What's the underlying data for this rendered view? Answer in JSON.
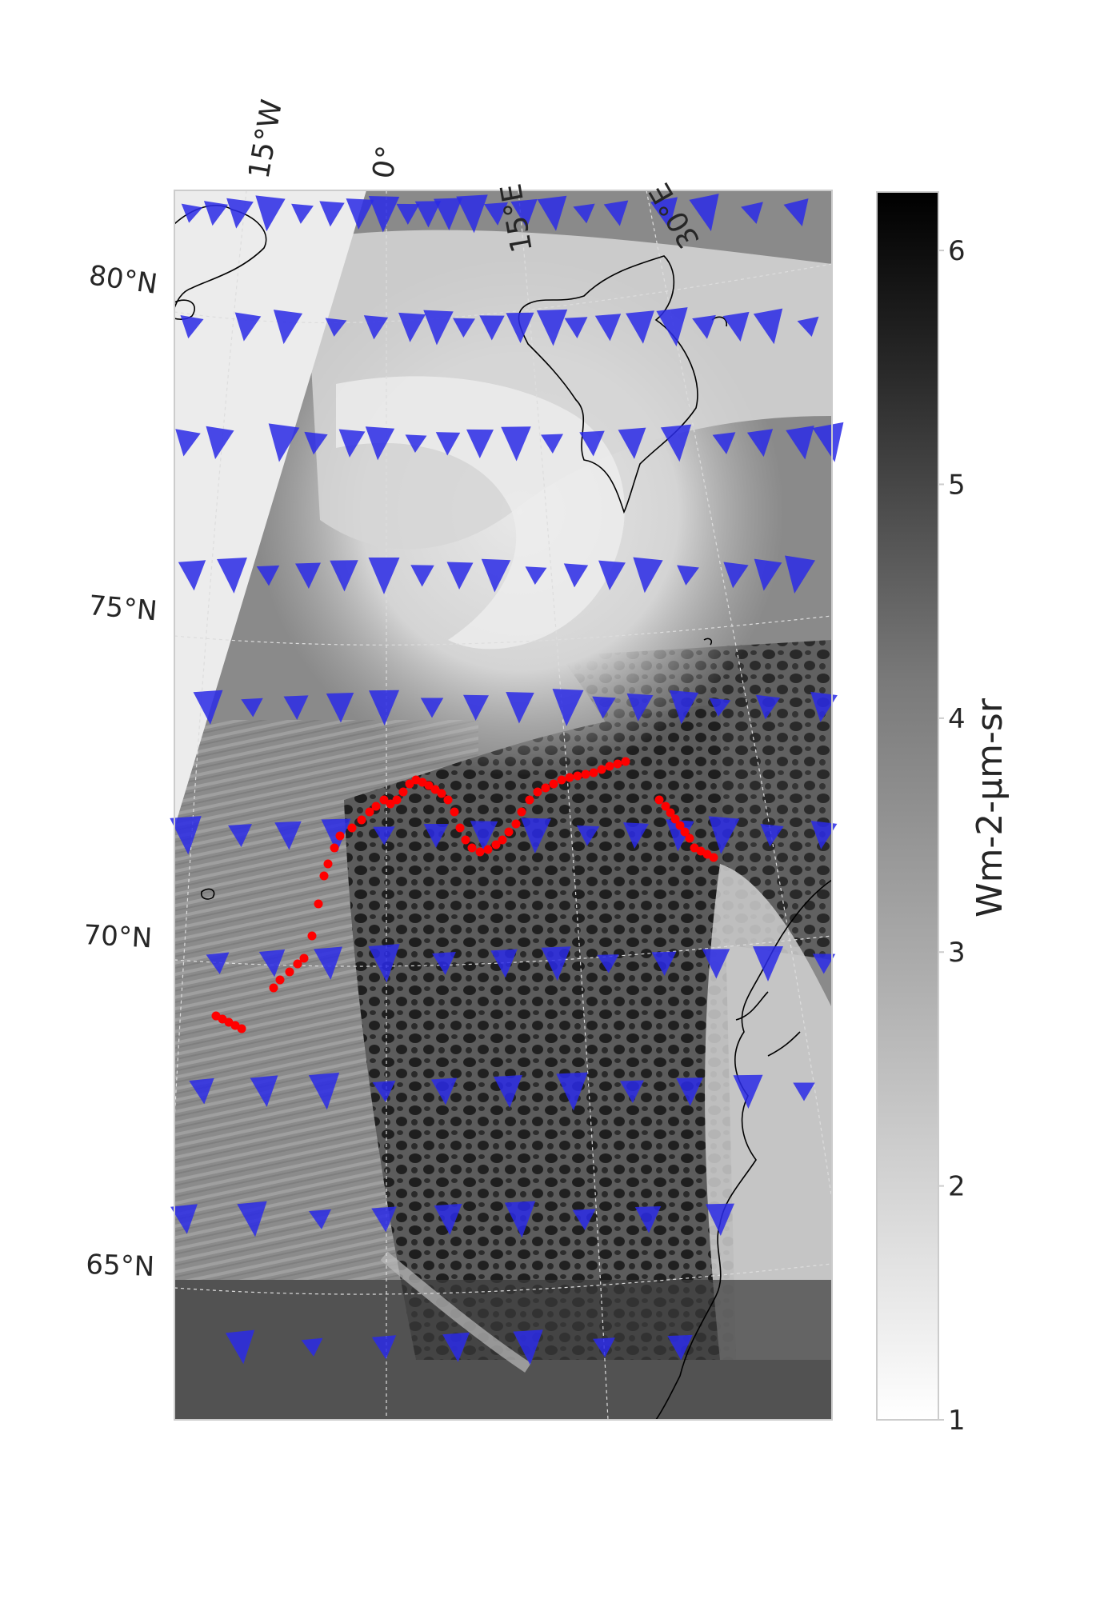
{
  "figure": {
    "lon_labels": [
      "15°W",
      "0°",
      "15°E",
      "30°E"
    ],
    "lat_labels": [
      "80°N",
      "75°N",
      "70°N",
      "65°N"
    ],
    "colorbar": {
      "label": "Wm-2-µm-sr",
      "ticks": [
        "1",
        "2",
        "3",
        "4",
        "5",
        "6"
      ],
      "range": [
        1,
        6.25
      ],
      "cmap": "gray_r"
    },
    "colors": {
      "wind_arrows": "#2a2ae6",
      "track": "#ff0000",
      "coastline": "#000000",
      "no_data": "#ececec"
    },
    "layers": {
      "background": "satellite radiance image (grayscale)",
      "wind_vectors": "blue arrows",
      "track": "red dotted line"
    }
  }
}
